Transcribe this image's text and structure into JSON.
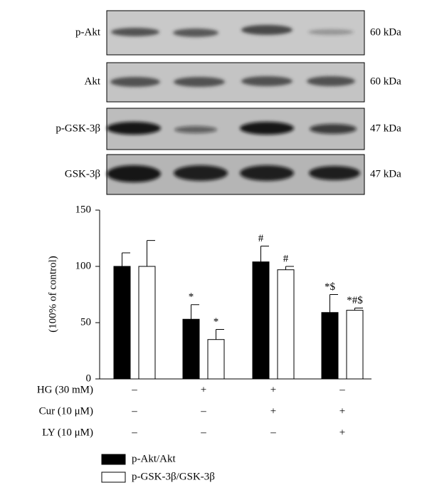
{
  "blots": [
    {
      "label": "p-Akt",
      "size": "60 kDa"
    },
    {
      "label": "Akt",
      "size": "60 kDa"
    },
    {
      "label": "p-GSK-3β",
      "size": "47 kDa"
    },
    {
      "label": "GSK-3β",
      "size": "47 kDa"
    }
  ],
  "chart_data": {
    "type": "bar",
    "y_label": "(100% of control)",
    "categories": [
      null,
      null,
      null,
      null
    ],
    "series": [
      {
        "name": "p-Akt/Akt",
        "color": "#000000",
        "values": [
          100,
          53,
          104,
          59
        ],
        "errors": [
          12,
          13,
          14,
          16
        ],
        "annotations": [
          null,
          "*",
          "#",
          "*$"
        ]
      },
      {
        "name": "p-GSK-3β/GSK-3β",
        "color": "#ffffff",
        "values": [
          100,
          35,
          97,
          61
        ],
        "errors": [
          23,
          9,
          3,
          2
        ],
        "annotations": [
          null,
          "*",
          "#",
          "*#$"
        ]
      }
    ],
    "ylim": [
      0,
      150
    ],
    "yticks": [
      0,
      50,
      100,
      150
    ],
    "grid": false,
    "legend": "bottom-left",
    "treatments": [
      {
        "label": "HG (30 mM)",
        "signs": [
          "–",
          "+",
          "+",
          "–"
        ]
      },
      {
        "label": "Cur (10 μM)",
        "signs": [
          "–",
          "–",
          "+",
          "+"
        ]
      },
      {
        "label": "LY (10 μM)",
        "signs": [
          "–",
          "–",
          "–",
          "+"
        ]
      }
    ]
  }
}
